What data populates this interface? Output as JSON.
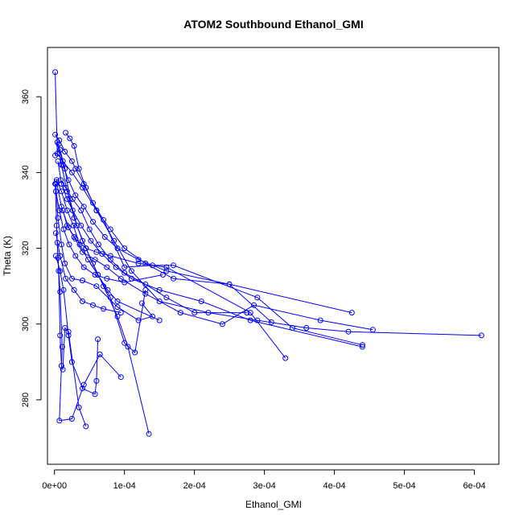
{
  "chart_data": {
    "type": "scatter",
    "title": "ATOM2 Southbound Ethanol_GMI",
    "xlabel": "Ethanol_GMI",
    "ylabel": "Theta (K)",
    "xlim": [
      -1e-05,
      0.000635
    ],
    "ylim": [
      263,
      373
    ],
    "xticks": [
      0,
      0.0001,
      0.0002,
      0.0003,
      0.0004,
      0.0005,
      0.0006
    ],
    "xtick_labels": [
      "0e+00",
      "1e-04",
      "2e-04",
      "3e-04",
      "4e-04",
      "5e-04",
      "6e-04"
    ],
    "yticks": [
      280,
      300,
      320,
      340,
      360
    ],
    "ytick_labels": [
      "280",
      "300",
      "320",
      "340",
      "360"
    ],
    "grid": false,
    "series_color": "#0000ff",
    "series": [
      {
        "values": [
          [
            1e-06,
            366.5
          ],
          [
            4e-06,
            345
          ],
          [
            1.2e-05,
            343
          ],
          [
            2.5e-05,
            340
          ],
          [
            4e-05,
            336
          ],
          [
            6e-05,
            330
          ],
          [
            8.5e-05,
            322
          ],
          [
            0.00011,
            314
          ],
          [
            0.00015,
            306
          ],
          [
            0.00022,
            303
          ],
          [
            0.00029,
            301
          ],
          [
            0.00036,
            299
          ],
          [
            0.00042,
            298
          ],
          [
            0.00061,
            297
          ]
        ]
      },
      {
        "values": [
          [
            1e-06,
            350
          ],
          [
            7e-06,
            348.5
          ],
          [
            1.5e-05,
            345.5
          ],
          [
            2.5e-05,
            343
          ],
          [
            3e-05,
            341
          ],
          [
            4.2e-05,
            337
          ],
          [
            6e-05,
            330
          ],
          [
            8e-05,
            325
          ],
          [
            0.0001,
            320
          ],
          [
            0.00013,
            316
          ],
          [
            0.00017,
            312
          ],
          [
            0.00025,
            310.5
          ],
          [
            0.00031,
            300.5
          ]
        ]
      },
      {
        "values": [
          [
            2e-06,
            337
          ],
          [
            5e-06,
            328
          ],
          [
            1e-05,
            321
          ],
          [
            1.5e-05,
            316
          ],
          [
            2.5e-05,
            312
          ],
          [
            4e-05,
            311.5
          ],
          [
            6e-05,
            310
          ],
          [
            9e-05,
            304.5
          ],
          [
            0.00012,
            301
          ],
          [
            0.00014,
            302
          ],
          [
            0.000125,
            305.5
          ]
        ]
      },
      {
        "values": [
          [
            1e-06,
            344.5
          ],
          [
            8e-06,
            346
          ],
          [
            1.5e-05,
            341
          ],
          [
            2.2e-05,
            333
          ],
          [
            3.2e-05,
            326
          ],
          [
            4.5e-05,
            320
          ],
          [
            6.2e-05,
            313
          ],
          [
            8e-05,
            307
          ],
          [
            0.0001,
            295
          ],
          [
            0.000115,
            292.5
          ],
          [
            0.00013,
            309
          ]
        ]
      },
      {
        "values": [
          [
            3e-06,
            337.5
          ],
          [
            1e-05,
            331
          ],
          [
            2e-05,
            325.5
          ],
          [
            3e-05,
            322.5
          ],
          [
            4.5e-05,
            320
          ],
          [
            6e-05,
            319
          ],
          [
            8e-05,
            318
          ],
          [
            0.00012,
            316
          ],
          [
            0.00016,
            315
          ],
          [
            0.00028,
            303
          ],
          [
            0.00033,
            291
          ]
        ]
      },
      {
        "values": [
          [
            2e-06,
            324
          ],
          [
            8e-06,
            318
          ],
          [
            1.6e-05,
            312
          ],
          [
            2.8e-05,
            309
          ],
          [
            4e-05,
            306
          ],
          [
            5.5e-05,
            305
          ],
          [
            7e-05,
            304
          ],
          [
            9.5e-05,
            303
          ]
        ]
      },
      {
        "values": [
          [
            4e-06,
            348
          ],
          [
            1e-05,
            342
          ],
          [
            1.8e-05,
            335
          ],
          [
            2.8e-05,
            328
          ],
          [
            4e-05,
            322
          ],
          [
            5.5e-05,
            316
          ],
          [
            7e-05,
            310
          ],
          [
            9e-05,
            302
          ],
          [
            0.000105,
            294
          ],
          [
            0.000135,
            271
          ]
        ]
      },
      {
        "values": [
          [
            2e-06,
            318
          ],
          [
            8e-06,
            314
          ],
          [
            1.3e-05,
            309
          ],
          [
            2e-05,
            297
          ],
          [
            2.5e-05,
            290
          ],
          [
            4e-05,
            283
          ],
          [
            5.8e-05,
            281.5
          ],
          [
            6e-05,
            285
          ],
          [
            6.2e-05,
            296
          ]
        ]
      },
      {
        "values": [
          [
            1e-06,
            337
          ],
          [
            4e-06,
            321.5
          ],
          [
            6e-06,
            314
          ],
          [
            8e-06,
            297
          ],
          [
            1e-05,
            289
          ],
          [
            1.2e-05,
            288
          ],
          [
            1.5e-05,
            299
          ],
          [
            2e-05,
            298
          ],
          [
            3.5e-05,
            278
          ],
          [
            4.5e-05,
            273
          ]
        ]
      },
      {
        "values": [
          [
            3e-06,
            326
          ],
          [
            5e-06,
            317.5
          ],
          [
            8e-06,
            308.5
          ],
          [
            1.1e-05,
            294
          ],
          [
            7e-06,
            274.5
          ],
          [
            2.5e-05,
            275
          ],
          [
            4.2e-05,
            284
          ],
          [
            6.5e-05,
            292
          ],
          [
            9.5e-05,
            286
          ]
        ]
      },
      {
        "values": [
          [
            1.6e-05,
            350.5
          ],
          [
            2.2e-05,
            349
          ],
          [
            2.8e-05,
            347
          ],
          [
            3.5e-05,
            341
          ],
          [
            4.5e-05,
            336
          ],
          [
            5.5e-05,
            332
          ],
          [
            7e-05,
            327.5
          ],
          [
            0.0001,
            315
          ],
          [
            0.00014,
            315.5
          ],
          [
            0.00017,
            315.5
          ],
          [
            0.00029,
            307
          ],
          [
            0.00034,
            299
          ],
          [
            0.00044,
            294.5
          ]
        ]
      },
      {
        "values": [
          [
            1.2e-05,
            330
          ],
          [
            1.8e-05,
            326
          ],
          [
            2.8e-05,
            323
          ],
          [
            4e-05,
            319
          ],
          [
            5.8e-05,
            317
          ],
          [
            7.5e-05,
            315
          ],
          [
            9.5e-05,
            312
          ],
          [
            0.00013,
            308
          ],
          [
            0.00018,
            303
          ],
          [
            0.00024,
            300
          ],
          [
            0.000285,
            305
          ],
          [
            0.00038,
            301
          ],
          [
            0.000455,
            298.5
          ]
        ]
      },
      {
        "values": [
          [
            5e-06,
            343
          ],
          [
            1e-05,
            337
          ],
          [
            1.8e-05,
            333
          ],
          [
            2.6e-05,
            330
          ],
          [
            3.8e-05,
            326
          ],
          [
            5.2e-05,
            322
          ],
          [
            6.8e-05,
            318.5
          ],
          [
            8.8e-05,
            315
          ],
          [
            0.00011,
            312
          ],
          [
            0.00015,
            309
          ],
          [
            0.00021,
            306
          ],
          [
            0.00028,
            301
          ],
          [
            0.00044,
            294
          ]
        ]
      },
      {
        "values": [
          [
            6e-06,
            347.5
          ],
          [
            1.2e-05,
            342
          ],
          [
            2e-05,
            338
          ],
          [
            3e-05,
            334
          ],
          [
            4.2e-05,
            331
          ],
          [
            5.5e-05,
            327
          ],
          [
            7.2e-05,
            323
          ],
          [
            9e-05,
            320
          ],
          [
            0.00012,
            317
          ],
          [
            0.00016,
            314
          ],
          [
            0.00025,
            310.5
          ],
          [
            0.000425,
            303
          ]
        ]
      },
      {
        "values": [
          [
            9e-06,
            338
          ],
          [
            1.6e-05,
            336
          ],
          [
            2.6e-05,
            333
          ],
          [
            3.8e-05,
            330
          ],
          [
            5e-05,
            325
          ],
          [
            6.3e-05,
            321
          ],
          [
            8e-05,
            317
          ],
          [
            0.0001,
            313.5
          ],
          [
            0.00013,
            310.5
          ],
          [
            0.00016,
            307
          ],
          [
            0.0002,
            303
          ],
          [
            0.000275,
            303
          ]
        ]
      },
      {
        "values": [
          [
            3e-06,
            338
          ],
          [
            1e-05,
            335
          ],
          [
            1.8e-05,
            330
          ],
          [
            2.7e-05,
            326
          ],
          [
            3.6e-05,
            321
          ],
          [
            4.8e-05,
            317
          ],
          [
            6.2e-05,
            313
          ],
          [
            7.6e-05,
            309
          ],
          [
            9e-05,
            306
          ],
          [
            0.00015,
            301
          ]
        ]
      },
      {
        "values": [
          [
            2e-06,
            335
          ],
          [
            7e-06,
            330
          ],
          [
            1.3e-05,
            325
          ],
          [
            2.1e-05,
            321
          ],
          [
            3e-05,
            318
          ],
          [
            4.2e-05,
            315
          ],
          [
            5.8e-05,
            313
          ],
          [
            7.5e-05,
            312
          ],
          [
            0.0001,
            311
          ],
          [
            0.000155,
            313
          ]
        ]
      }
    ]
  }
}
